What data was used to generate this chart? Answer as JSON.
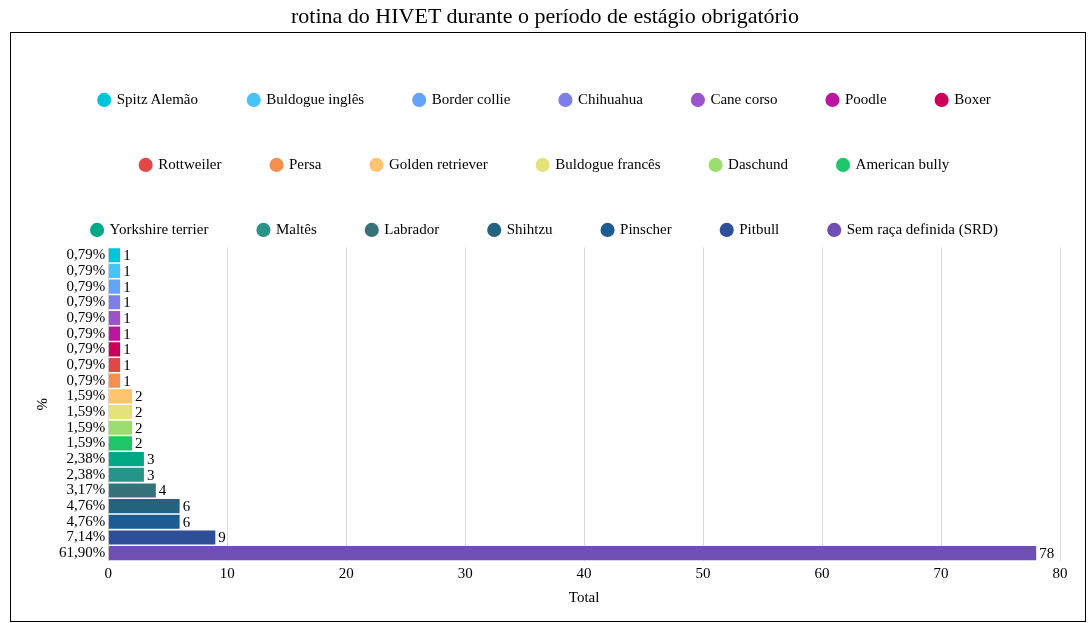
{
  "chart_data": {
    "type": "bar",
    "orientation": "horizontal",
    "title": "rotina do HIVET durante o período de estágio obrigatório",
    "xlabel": "Total",
    "ylabel": "%",
    "categories": [
      "0,79%",
      "0,79%",
      "0,79%",
      "0,79%",
      "0,79%",
      "0,79%",
      "0,79%",
      "0,79%",
      "0,79%",
      "1,59%",
      "1,59%",
      "1,59%",
      "1,59%",
      "2,38%",
      "2,38%",
      "3,17%",
      "4,76%",
      "4,76%",
      "7,14%",
      "61,90%"
    ],
    "series": [
      {
        "name": "Spitz Alemão",
        "color": "#00c5d8",
        "values": [
          1,
          null,
          null,
          null,
          null,
          null,
          null,
          null,
          null,
          null,
          null,
          null,
          null,
          null,
          null,
          null,
          null,
          null,
          null,
          null
        ]
      },
      {
        "name": "Buldogue inglês",
        "color": "#46c3f7",
        "values": [
          null,
          1,
          null,
          null,
          null,
          null,
          null,
          null,
          null,
          null,
          null,
          null,
          null,
          null,
          null,
          null,
          null,
          null,
          null,
          null
        ]
      },
      {
        "name": "Border collie",
        "color": "#63a4f7",
        "values": [
          null,
          null,
          1,
          null,
          null,
          null,
          null,
          null,
          null,
          null,
          null,
          null,
          null,
          null,
          null,
          null,
          null,
          null,
          null,
          null
        ]
      },
      {
        "name": "Chihuahua",
        "color": "#7e7ee8",
        "values": [
          null,
          null,
          null,
          1,
          null,
          null,
          null,
          null,
          null,
          null,
          null,
          null,
          null,
          null,
          null,
          null,
          null,
          null,
          null,
          null
        ]
      },
      {
        "name": "Cane corso",
        "color": "#9c54c9",
        "values": [
          null,
          null,
          null,
          null,
          1,
          null,
          null,
          null,
          null,
          null,
          null,
          null,
          null,
          null,
          null,
          null,
          null,
          null,
          null,
          null
        ]
      },
      {
        "name": "Poodle",
        "color": "#bb169f",
        "values": [
          null,
          null,
          null,
          null,
          null,
          1,
          null,
          null,
          null,
          null,
          null,
          null,
          null,
          null,
          null,
          null,
          null,
          null,
          null,
          null
        ]
      },
      {
        "name": "Boxer",
        "color": "#cd0059",
        "values": [
          null,
          null,
          null,
          null,
          null,
          null,
          1,
          null,
          null,
          null,
          null,
          null,
          null,
          null,
          null,
          null,
          null,
          null,
          null,
          null
        ]
      },
      {
        "name": "Rottweiler",
        "color": "#e04848",
        "values": [
          null,
          null,
          null,
          null,
          null,
          null,
          null,
          1,
          null,
          null,
          null,
          null,
          null,
          null,
          null,
          null,
          null,
          null,
          null,
          null
        ]
      },
      {
        "name": "Persa",
        "color": "#f39050",
        "values": [
          null,
          null,
          null,
          null,
          null,
          null,
          null,
          null,
          1,
          null,
          null,
          null,
          null,
          null,
          null,
          null,
          null,
          null,
          null,
          null
        ]
      },
      {
        "name": "Golden retriever",
        "color": "#ffc470",
        "values": [
          null,
          null,
          null,
          null,
          null,
          null,
          null,
          null,
          null,
          2,
          null,
          null,
          null,
          null,
          null,
          null,
          null,
          null,
          null,
          null
        ]
      },
      {
        "name": "Buldogue francês",
        "color": "#e3e37a",
        "values": [
          null,
          null,
          null,
          null,
          null,
          null,
          null,
          null,
          null,
          null,
          2,
          null,
          null,
          null,
          null,
          null,
          null,
          null,
          null,
          null
        ]
      },
      {
        "name": "Daschund",
        "color": "#9cdd70",
        "values": [
          null,
          null,
          null,
          null,
          null,
          null,
          null,
          null,
          null,
          null,
          null,
          2,
          null,
          null,
          null,
          null,
          null,
          null,
          null,
          null
        ]
      },
      {
        "name": "American bully",
        "color": "#1ec66a",
        "values": [
          null,
          null,
          null,
          null,
          null,
          null,
          null,
          null,
          null,
          null,
          null,
          null,
          2,
          null,
          null,
          null,
          null,
          null,
          null,
          null
        ]
      },
      {
        "name": "Yorkshire terrier",
        "color": "#00a886",
        "values": [
          null,
          null,
          null,
          null,
          null,
          null,
          null,
          null,
          null,
          null,
          null,
          null,
          null,
          3,
          null,
          null,
          null,
          null,
          null,
          null
        ]
      },
      {
        "name": "Maltês",
        "color": "#27948a",
        "values": [
          null,
          null,
          null,
          null,
          null,
          null,
          null,
          null,
          null,
          null,
          null,
          null,
          null,
          null,
          3,
          null,
          null,
          null,
          null,
          null
        ]
      },
      {
        "name": "Labrador",
        "color": "#37727a",
        "values": [
          null,
          null,
          null,
          null,
          null,
          null,
          null,
          null,
          null,
          null,
          null,
          null,
          null,
          null,
          null,
          4,
          null,
          null,
          null,
          null
        ]
      },
      {
        "name": "Shihtzu",
        "color": "#24637d",
        "values": [
          null,
          null,
          null,
          null,
          null,
          null,
          null,
          null,
          null,
          null,
          null,
          null,
          null,
          null,
          null,
          null,
          6,
          null,
          null,
          null
        ]
      },
      {
        "name": "Pinscher",
        "color": "#1d5c93",
        "values": [
          null,
          null,
          null,
          null,
          null,
          null,
          null,
          null,
          null,
          null,
          null,
          null,
          null,
          null,
          null,
          null,
          null,
          6,
          null,
          null
        ]
      },
      {
        "name": "Pitbull",
        "color": "#2e4e98",
        "values": [
          null,
          null,
          null,
          null,
          null,
          null,
          null,
          null,
          null,
          null,
          null,
          null,
          null,
          null,
          null,
          null,
          null,
          null,
          9,
          null
        ]
      },
      {
        "name": "Sem raça definida (SRD)",
        "color": "#6f4fb4",
        "values": [
          null,
          null,
          null,
          null,
          null,
          null,
          null,
          null,
          null,
          null,
          null,
          null,
          null,
          null,
          null,
          null,
          null,
          null,
          null,
          78
        ]
      }
    ],
    "xlim": [
      0,
      80
    ],
    "xticks": [
      0,
      10,
      20,
      30,
      40,
      50,
      60,
      70,
      80
    ],
    "grid": "x",
    "legend": "top",
    "data_labels": true
  }
}
